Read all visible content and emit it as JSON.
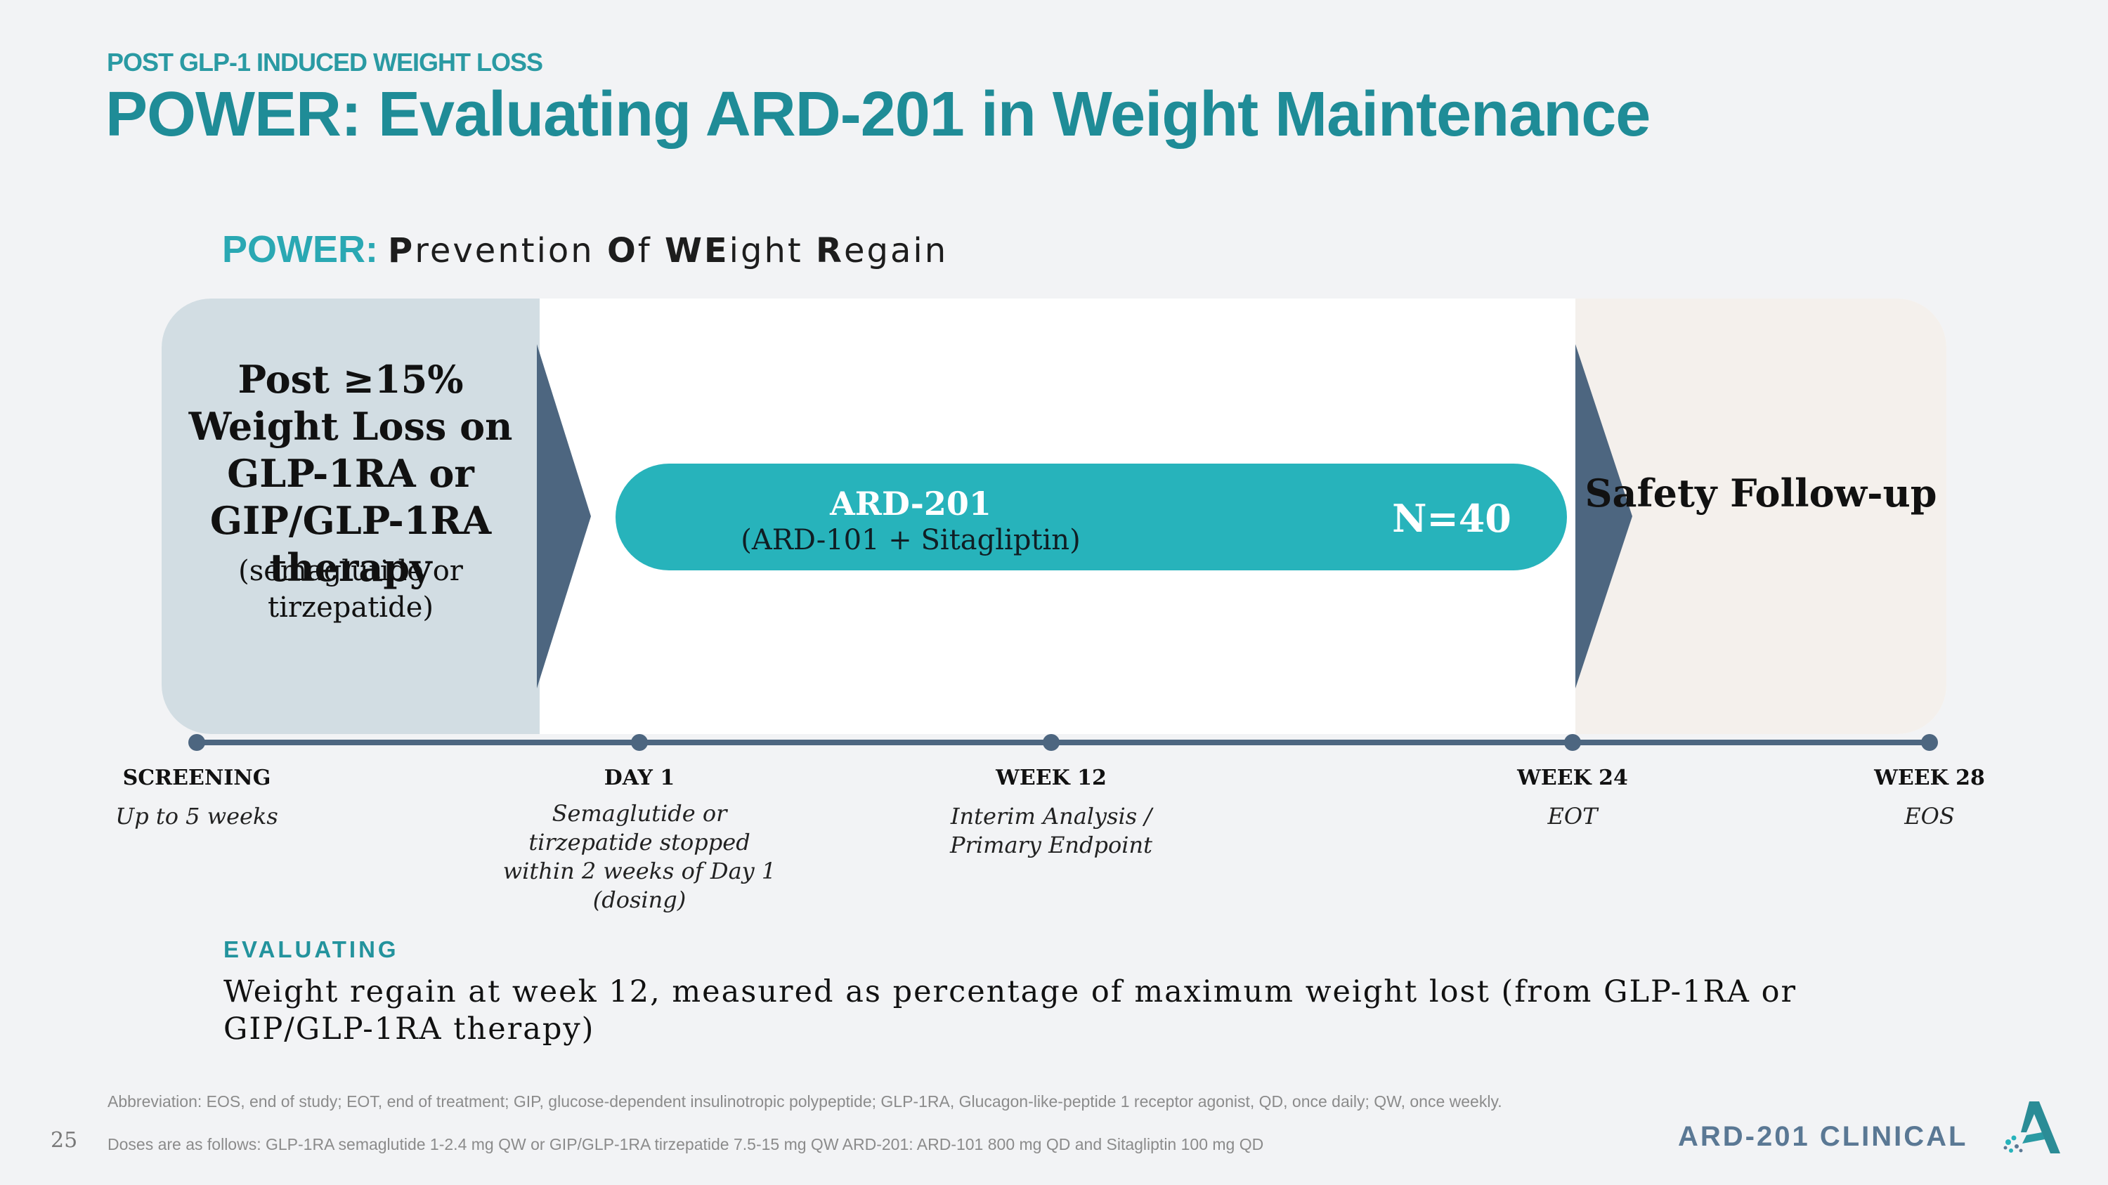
{
  "header": {
    "eyebrow": "POST GLP-1 INDUCED WEIGHT LOSS",
    "title": "POWER: Evaluating ARD-201 in Weight Maintenance"
  },
  "acronym": {
    "word": "POWER:",
    "parts": [
      {
        "bold": "P",
        "rest": "revention "
      },
      {
        "bold": "O",
        "rest": "f "
      },
      {
        "bold": "WE",
        "rest": "ight "
      },
      {
        "bold": "R",
        "rest": "egain"
      }
    ]
  },
  "design": {
    "eligibility_title": "Post ≥15% Weight Loss on GLP-1RA or GIP/GLP-1RA therapy",
    "eligibility_detail": "(semaglutide or tirzepatide)",
    "treatment_name": "ARD-201",
    "treatment_detail": "(ARD-101 + Sitagliptin)",
    "sample_size": "N=40",
    "followup": "Safety Follow-up"
  },
  "timeline": [
    {
      "label": "SCREENING",
      "desc": "Up to 5 weeks"
    },
    {
      "label": "DAY 1",
      "desc": "Semaglutide or tirzepatide stopped within 2 weeks of Day 1 (dosing)"
    },
    {
      "label": "WEEK 12",
      "desc": "Interim Analysis / Primary Endpoint"
    },
    {
      "label": "WEEK 24",
      "desc": "EOT"
    },
    {
      "label": "WEEK 28",
      "desc": "EOS"
    }
  ],
  "evaluating": {
    "heading": "EVALUATING",
    "text": "Weight regain at week 12, measured as percentage of maximum weight lost (from GLP-1RA or GIP/GLP-1RA therapy)"
  },
  "footer": {
    "abbreviations": "Abbreviation: EOS, end of study; EOT, end of treatment; GIP, glucose-dependent insulinotropic polypeptide; GLP-1RA, Glucagon-like-peptide 1 receptor agonist, QD, once daily; QW, once weekly.",
    "doses": "Doses are as follows: GLP-1RA semaglutide 1-2.4 mg QW or GIP/GLP-1RA tirzepatide 7.5-15 mg QW ARD-201: ARD-101 800 mg QD and Sitagliptin 100 mg QD",
    "page_number": "25",
    "brand": "ARD-201 CLINICAL"
  },
  "colors": {
    "title_teal": "#1f8c97",
    "pill_teal": "#27b3bb",
    "timeline_slate": "#4d6680",
    "screening_panel": "#d2dde3",
    "followup_panel": "#f4f0ec"
  }
}
